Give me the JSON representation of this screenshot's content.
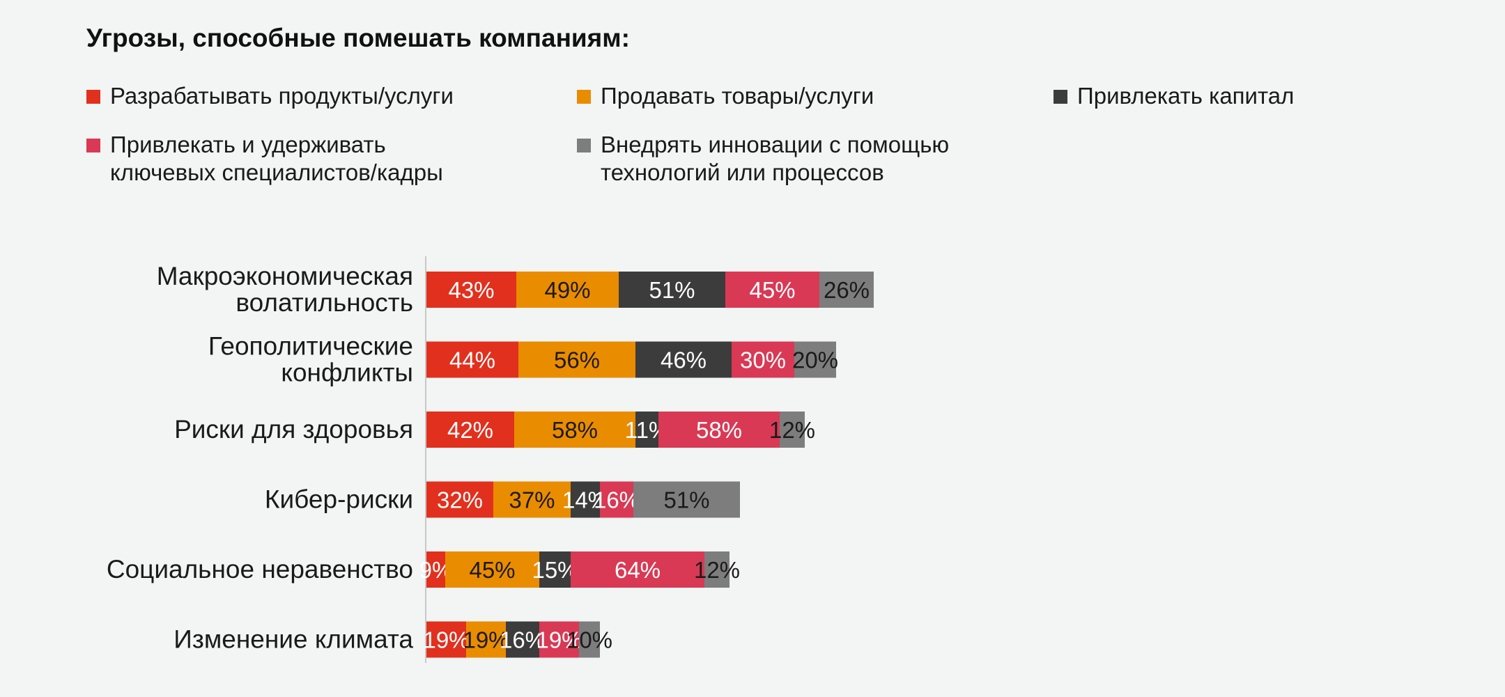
{
  "title": "Угрозы, способные помешать компаниям:",
  "legend": [
    {
      "label": "Разрабатывать продукты/услуги",
      "color": "#e1301d"
    },
    {
      "label": "Продавать товары/услуги",
      "color": "#ea8c00"
    },
    {
      "label": "Привлекать капитал",
      "color": "#3c3c3c"
    },
    {
      "label": "Привлекать и удерживать\nключевых специалистов/кадры",
      "color": "#d93954"
    },
    {
      "label": "Внедрять инновации с помощью\nтехнологий или процессов",
      "color": "#7d7d7d"
    }
  ],
  "chart_data": {
    "type": "bar",
    "orientation": "horizontal",
    "stacked": true,
    "title": "Угрозы, способные помешать компаниям:",
    "categories": [
      "Макроэкономическая\nволатильность",
      "Геополитические\nконфликты",
      "Риски для здоровья",
      "Кибер-риски",
      "Социальное неравенство",
      "Изменение климата"
    ],
    "series": [
      {
        "name": "Разрабатывать продукты/услуги",
        "color": "#e1301d",
        "label_color": "#ffffff",
        "values": [
          43,
          44,
          42,
          32,
          9,
          19
        ]
      },
      {
        "name": "Продавать товары/услуги",
        "color": "#ea8c00",
        "label_color": "#1a1a1a",
        "values": [
          49,
          56,
          58,
          37,
          45,
          19
        ]
      },
      {
        "name": "Привлекать капитал",
        "color": "#3c3c3c",
        "label_color": "#ffffff",
        "values": [
          51,
          46,
          11,
          14,
          15,
          16
        ]
      },
      {
        "name": "Привлекать и удерживать ключевых специалистов/кадры",
        "color": "#d93954",
        "label_color": "#ffffff",
        "values": [
          45,
          30,
          58,
          16,
          64,
          19
        ]
      },
      {
        "name": "Внедрять инновации с помощью технологий или процессов",
        "color": "#7d7d7d",
        "label_color": "#1a1a1a",
        "values": [
          26,
          20,
          12,
          51,
          12,
          10
        ]
      }
    ],
    "value_suffix": "%",
    "legend_position": "top",
    "grid": false
  }
}
